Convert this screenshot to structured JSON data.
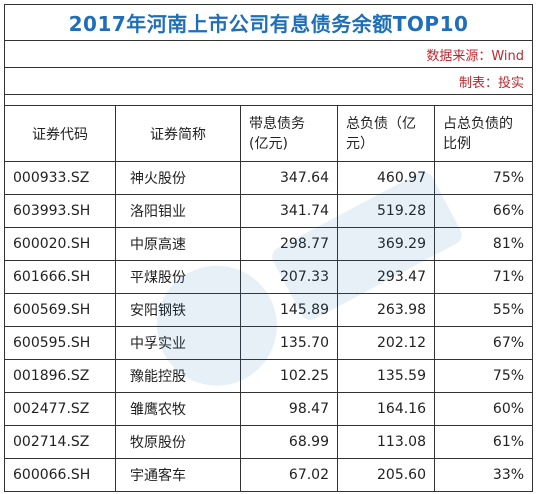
{
  "title": "2017年河南上市公司有息债务余额TOP10",
  "source": "数据来源：Wind",
  "producer": "制表：投实",
  "headers": {
    "code": "证券代码",
    "name": "证券简称",
    "debt_line1": "带息债务",
    "debt_line2": "(亿元)",
    "total_line1": "总负债（亿",
    "total_line2": "元）",
    "ratio_line1": "占总负债的",
    "ratio_line2": "比例"
  },
  "rows": [
    {
      "code": "000933.SZ",
      "name": "神火股份",
      "debt": "347.64",
      "total": "460.97",
      "ratio": "75%"
    },
    {
      "code": "603993.SH",
      "name": "洛阳钼业",
      "debt": "341.74",
      "total": "519.28",
      "ratio": "66%"
    },
    {
      "code": "600020.SH",
      "name": "中原高速",
      "debt": "298.77",
      "total": "369.29",
      "ratio": "81%"
    },
    {
      "code": "601666.SH",
      "name": "平煤股份",
      "debt": "207.33",
      "total": "293.47",
      "ratio": "71%"
    },
    {
      "code": "600569.SH",
      "name": "安阳钢铁",
      "debt": "145.89",
      "total": "263.98",
      "ratio": "55%"
    },
    {
      "code": "600595.SH",
      "name": "中孚实业",
      "debt": "135.70",
      "total": "202.12",
      "ratio": "67%"
    },
    {
      "code": "001896.SZ",
      "name": "豫能控股",
      "debt": "102.25",
      "total": "135.59",
      "ratio": "75%"
    },
    {
      "code": "002477.SZ",
      "name": "雏鹰农牧",
      "debt": "98.47",
      "total": "164.16",
      "ratio": "60%"
    },
    {
      "code": "002714.SZ",
      "name": "牧原股份",
      "debt": "68.99",
      "total": "113.08",
      "ratio": "61%"
    },
    {
      "code": "600066.SH",
      "name": "宇通客车",
      "debt": "67.02",
      "total": "205.60",
      "ratio": "33%"
    }
  ],
  "colors": {
    "title": "#1f6fb8",
    "meta": "#c0272d",
    "border": "#333333"
  }
}
